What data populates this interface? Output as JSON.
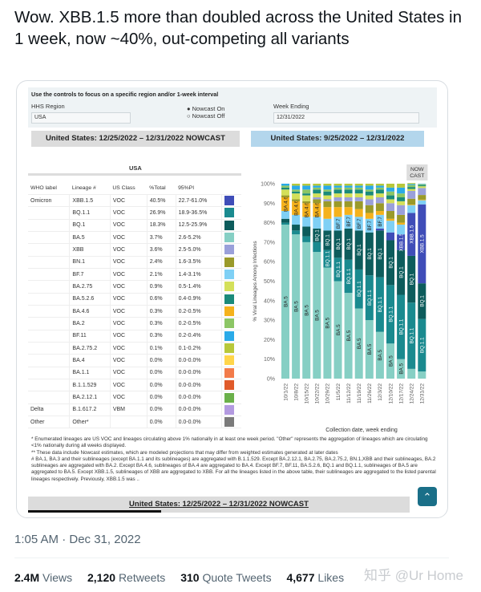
{
  "tweet": {
    "text": "Wow.  XBB.1.5 more than doubled across the United States in 1 week, now ~40%, out-competing all variants",
    "timestamp": "1:05 AM · Dec 31, 2022",
    "stats": [
      {
        "value": "2.4M",
        "label": "Views"
      },
      {
        "value": "2,120",
        "label": "Retweets"
      },
      {
        "value": "310",
        "label": "Quote Tweets"
      },
      {
        "value": "4,677",
        "label": "Likes"
      }
    ],
    "watermark": "知乎 @Ur Home"
  },
  "controls": {
    "title": "Use the controls to focus on a specific region and/or 1-week interval",
    "region_label": "HHS Region",
    "region_value": "USA",
    "nowcast_on": "Nowcast On",
    "nowcast_off": "Nowcast Off",
    "week_label": "Week Ending",
    "week_value": "12/31/2022"
  },
  "banners": {
    "table": "United States: 12/25/2022 – 12/31/2022 NOWCAST",
    "chart": "United States: 9/25/2022 – 12/31/2022",
    "bottom": "United States: 12/25/2022 – 12/31/2022 NOWCAST"
  },
  "table": {
    "region": "USA",
    "headers": [
      "WHO label",
      "Lineage #",
      "US Class",
      "%Total",
      "95%PI"
    ],
    "rows": [
      {
        "who": "Omicron",
        "lineage": "XBB.1.5",
        "cls": "VOC",
        "pct": "40.5%",
        "pi": "22.7-61.0%",
        "color": "#3f4db8"
      },
      {
        "who": "",
        "lineage": "BQ.1.1",
        "cls": "VOC",
        "pct": "26.9%",
        "pi": "18.9-36.5%",
        "color": "#1a8a8f"
      },
      {
        "who": "",
        "lineage": "BQ.1",
        "cls": "VOC",
        "pct": "18.3%",
        "pi": "12.5-25.9%",
        "color": "#0d5c5c"
      },
      {
        "who": "",
        "lineage": "BA.5",
        "cls": "VOC",
        "pct": "3.7%",
        "pi": "2.6-5.2%",
        "color": "#86cfc4"
      },
      {
        "who": "",
        "lineage": "XBB",
        "cls": "VOC",
        "pct": "3.6%",
        "pi": "2.5-5.0%",
        "color": "#9aa0da"
      },
      {
        "who": "",
        "lineage": "BN.1",
        "cls": "VOC",
        "pct": "2.4%",
        "pi": "1.6-3.5%",
        "color": "#9a9a2a"
      },
      {
        "who": "",
        "lineage": "BF.7",
        "cls": "VOC",
        "pct": "2.1%",
        "pi": "1.4-3.1%",
        "color": "#7fd0f5"
      },
      {
        "who": "",
        "lineage": "BA.2.75",
        "cls": "VOC",
        "pct": "0.9%",
        "pi": "0.5-1.4%",
        "color": "#d4e05a"
      },
      {
        "who": "",
        "lineage": "BA.5.2.6",
        "cls": "VOC",
        "pct": "0.6%",
        "pi": "0.4-0.9%",
        "color": "#1a8a7a"
      },
      {
        "who": "",
        "lineage": "BA.4.6",
        "cls": "VOC",
        "pct": "0.3%",
        "pi": "0.2-0.5%",
        "color": "#f5b21c"
      },
      {
        "who": "",
        "lineage": "BA.2",
        "cls": "VOC",
        "pct": "0.3%",
        "pi": "0.2-0.5%",
        "color": "#8cc665"
      },
      {
        "who": "",
        "lineage": "BF.11",
        "cls": "VOC",
        "pct": "0.3%",
        "pi": "0.2-0.4%",
        "color": "#2aaae8"
      },
      {
        "who": "",
        "lineage": "BA.2.75.2",
        "cls": "VOC",
        "pct": "0.1%",
        "pi": "0.1-0.2%",
        "color": "#b8c83a"
      },
      {
        "who": "",
        "lineage": "BA.4",
        "cls": "VOC",
        "pct": "0.0%",
        "pi": "0.0-0.0%",
        "color": "#ffd54a"
      },
      {
        "who": "",
        "lineage": "BA.1.1",
        "cls": "VOC",
        "pct": "0.0%",
        "pi": "0.0-0.0%",
        "color": "#f27b4a"
      },
      {
        "who": "",
        "lineage": "B.1.1.529",
        "cls": "VOC",
        "pct": "0.0%",
        "pi": "0.0-0.0%",
        "color": "#e05a2a"
      },
      {
        "who": "",
        "lineage": "BA.2.12.1",
        "cls": "VOC",
        "pct": "0.0%",
        "pi": "0.0-0.0%",
        "color": "#6ab04a"
      },
      {
        "who": "Delta",
        "lineage": "B.1.617.2",
        "cls": "VBM",
        "pct": "0.0%",
        "pi": "0.0-0.0%",
        "color": "#b39ae0"
      },
      {
        "who": "Other",
        "lineage": "Other*",
        "cls": "",
        "pct": "0.0%",
        "pi": "0.0-0.0%",
        "color": "#7a7a7a"
      }
    ]
  },
  "footnotes": [
    "*      Enumerated lineages are US VOC and lineages circulating above 1% nationally in at least one week period. \"Other\" represents the aggregation of lineages which are circulating <1% nationally during all weeks displayed.",
    "**      These data include Nowcast estimates, which are modeled projections that may differ from weighted estimates generated at later dates",
    "#      BA.1, BA.3 and their sublineages (except BA.1.1 and its sublineages) are aggregated with B.1.1.529. Except BA.2.12.1, BA.2.75, BA.2.75.2, BN.1,XBB and their sublineages, BA.2 sublineages are aggregated with BA.2. Except BA.4.6, sublineages of BA.4 are aggregated to BA.4. Except BF.7, BF.11, BA.5.2.6, BQ.1 and BQ.1.1, sublineages of BA.5 are aggregated to BA.5. Except XBB.1.5, sublineages of XBB are aggregated to XBB. For all the lineages listed in the above table, their sublineages are aggregated to the listed parental lineages respectively. Previously, XBB.1.5 was .."
  ],
  "chart_data": {
    "type": "bar",
    "stacked": true,
    "ylabel": "% Viral Lineages Among Infections",
    "xlabel": "Collection date, week ending",
    "ylim": [
      0,
      100
    ],
    "yticks": [
      "0%",
      "10%",
      "20%",
      "30%",
      "40%",
      "50%",
      "60%",
      "70%",
      "80%",
      "90%",
      "100%"
    ],
    "nowcast_label": "NOW CAST",
    "categories": [
      "10/1/22",
      "10/8/22",
      "10/15/22",
      "10/22/22",
      "10/29/22",
      "11/5/22",
      "11/12/22",
      "11/19/22",
      "11/26/22",
      "12/3/22",
      "12/10/22",
      "12/17/22",
      "12/24/22",
      "12/31/22"
    ],
    "series": [
      {
        "name": "BA.5",
        "color": "#86cfc4",
        "values": [
          79,
          74,
          70,
          65,
          57,
          50,
          44,
          36,
          30,
          24,
          18,
          10,
          5,
          3.7
        ]
      },
      {
        "name": "BQ.1.1",
        "color": "#1a8a8f",
        "values": [
          1,
          2,
          3,
          5,
          9,
          12,
          17,
          20,
          23,
          28,
          30,
          33,
          34,
          26.9
        ]
      },
      {
        "name": "BQ.1",
        "color": "#0d5c5c",
        "values": [
          2,
          3,
          5,
          7,
          10,
          14,
          16,
          20,
          22,
          24,
          23,
          23,
          24,
          18.3
        ]
      },
      {
        "name": "XBB.1.5",
        "color": "#3f4db8",
        "values": [
          0,
          0,
          0,
          0,
          0,
          0,
          0,
          0,
          0,
          1,
          4,
          8,
          22,
          40.5
        ]
      },
      {
        "name": "BF.7",
        "color": "#7fd0f5",
        "values": [
          4,
          5,
          5,
          6,
          6,
          7,
          7,
          7,
          7,
          7,
          6,
          5,
          4,
          2.1
        ]
      },
      {
        "name": "BA.4.6",
        "color": "#f5b21c",
        "values": [
          7,
          7,
          7,
          7,
          6,
          5,
          4,
          4,
          3,
          2,
          1,
          1,
          0.3,
          0.3
        ]
      },
      {
        "name": "BN.1",
        "color": "#9a9a2a",
        "values": [
          1,
          1,
          1,
          2,
          3,
          3,
          3,
          4,
          4,
          4,
          4,
          4,
          3,
          2.4
        ]
      },
      {
        "name": "XBB",
        "color": "#9aa0da",
        "values": [
          0,
          0,
          0,
          1,
          1,
          2,
          2,
          2,
          3,
          3,
          4,
          5,
          4,
          3.6
        ]
      },
      {
        "name": "BA.2.75",
        "color": "#d4e05a",
        "values": [
          3,
          3,
          3,
          2,
          2,
          2,
          2,
          2,
          2,
          2,
          2,
          2,
          1,
          0.9
        ]
      },
      {
        "name": "BA.5.2.6",
        "color": "#1a8a7a",
        "values": [
          1,
          1,
          1,
          2,
          2,
          2,
          2,
          2,
          2,
          2,
          2,
          2,
          1,
          0.6
        ]
      },
      {
        "name": "BA.2",
        "color": "#8cc665",
        "values": [
          1,
          1,
          2,
          1,
          1,
          1,
          1,
          1,
          1,
          1,
          2,
          2,
          1,
          0.3
        ]
      },
      {
        "name": "BF.11",
        "color": "#2aaae8",
        "values": [
          1,
          2,
          2,
          1,
          2,
          1,
          1,
          1,
          2,
          1,
          2,
          3,
          0.5,
          0.3
        ]
      },
      {
        "name": "BA.2.75.2",
        "color": "#b8c83a",
        "values": [
          0,
          1,
          1,
          1,
          1,
          1,
          1,
          1,
          1,
          1,
          2,
          2,
          0.5,
          0.1
        ]
      }
    ]
  }
}
